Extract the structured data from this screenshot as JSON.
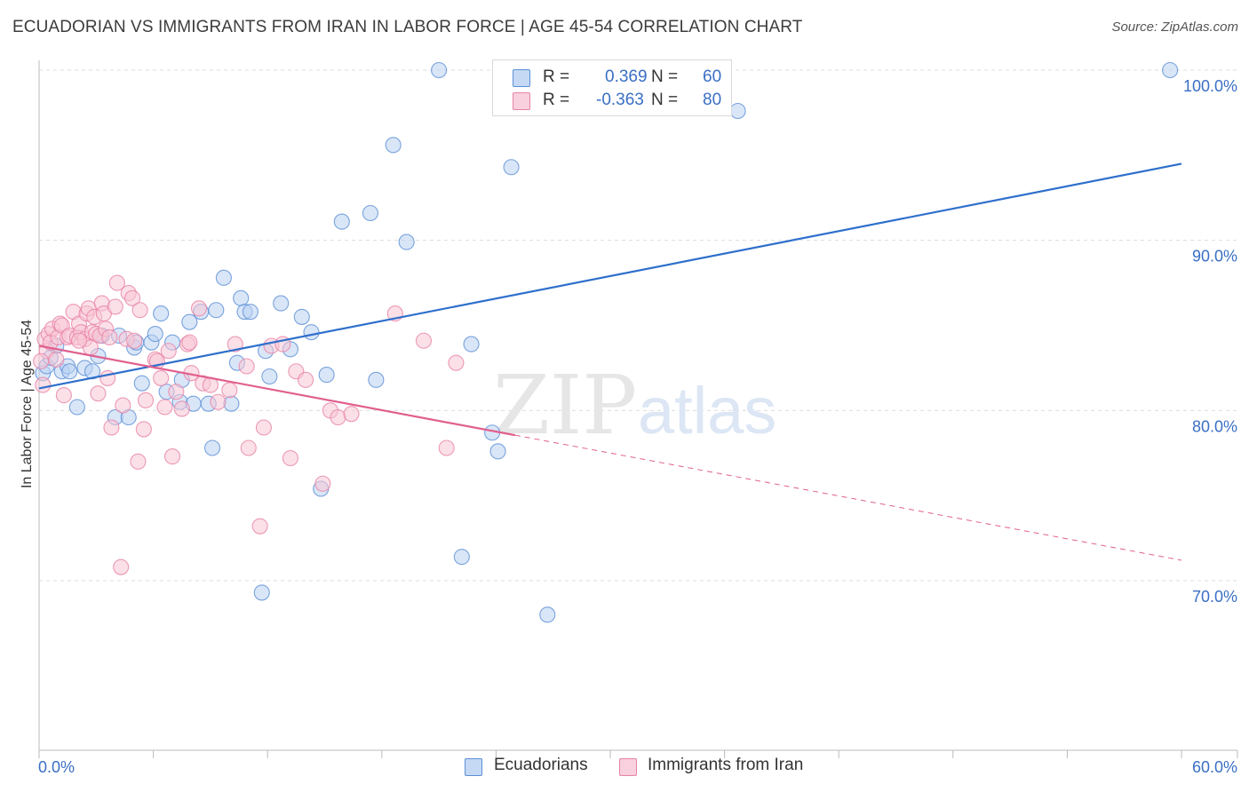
{
  "header": {
    "title": "ECUADORIAN VS IMMIGRANTS FROM IRAN IN LABOR FORCE | AGE 45-54 CORRELATION CHART",
    "source": "Source: ZipAtlas.com"
  },
  "watermark": {
    "part1": "ZIP",
    "part2": "atlas"
  },
  "legend": {
    "rows": [
      {
        "r_label": "R =",
        "r_value": "0.369",
        "n_label": "N =",
        "n_value": "60",
        "color": "#5b8fd6",
        "fill": "#b9d1f2"
      },
      {
        "r_label": "R =",
        "r_value": "-0.363",
        "n_label": "N =",
        "n_value": "80",
        "color": "#e882a6",
        "fill": "#f7c6d6"
      }
    ]
  },
  "bottom_legend": [
    {
      "label": "Ecuadorians",
      "color": "#5b8fd6",
      "fill": "#b9d1f2"
    },
    {
      "label": "Immigrants from Iran",
      "color": "#e882a6",
      "fill": "#f7c6d6"
    }
  ],
  "chart_data": {
    "type": "scatter",
    "ylabel": "In Labor Force | Age 45-54",
    "x_tick_labels": [
      "0.0%",
      "60.0%"
    ],
    "y_tick_labels": [
      "100.0%",
      "90.0%",
      "80.0%",
      "70.0%"
    ],
    "y_ticks": [
      100,
      90,
      80,
      70
    ],
    "xlim": [
      0,
      60
    ],
    "ylim": [
      60,
      100.8
    ],
    "grid": true,
    "colors": {
      "blue": "#2e6fcc",
      "pink": "#e0608e"
    },
    "series": [
      {
        "name": "Ecuadorians",
        "color": "#5b8fd6",
        "fill": "#b9d1f2",
        "trend": {
          "x0": 0.0,
          "y0": 81.3,
          "x1": 60.0,
          "y1": 94.5,
          "dash_from": null
        },
        "points": [
          [
            0.2,
            82.2
          ],
          [
            0.4,
            82.6
          ],
          [
            0.6,
            83.1
          ],
          [
            0.9,
            83.8
          ],
          [
            1.2,
            82.3
          ],
          [
            1.5,
            82.6
          ],
          [
            1.6,
            82.3
          ],
          [
            2.0,
            80.2
          ],
          [
            2.4,
            82.5
          ],
          [
            2.8,
            82.3
          ],
          [
            3.1,
            83.2
          ],
          [
            3.3,
            84.4
          ],
          [
            4.0,
            79.6
          ],
          [
            4.2,
            84.4
          ],
          [
            4.7,
            79.6
          ],
          [
            5.0,
            83.7
          ],
          [
            5.1,
            84.0
          ],
          [
            5.4,
            81.6
          ],
          [
            5.9,
            84.0
          ],
          [
            6.1,
            84.5
          ],
          [
            6.4,
            85.7
          ],
          [
            6.7,
            81.1
          ],
          [
            7.0,
            84.0
          ],
          [
            7.4,
            80.5
          ],
          [
            7.5,
            81.8
          ],
          [
            7.9,
            85.2
          ],
          [
            8.1,
            80.4
          ],
          [
            8.5,
            85.8
          ],
          [
            8.9,
            80.4
          ],
          [
            9.1,
            77.8
          ],
          [
            9.3,
            85.9
          ],
          [
            9.7,
            87.8
          ],
          [
            10.1,
            80.4
          ],
          [
            10.4,
            82.8
          ],
          [
            10.6,
            86.6
          ],
          [
            10.8,
            85.8
          ],
          [
            11.1,
            85.8
          ],
          [
            11.7,
            69.3
          ],
          [
            11.9,
            83.5
          ],
          [
            12.1,
            82.0
          ],
          [
            12.7,
            86.3
          ],
          [
            13.2,
            83.6
          ],
          [
            13.8,
            85.5
          ],
          [
            14.3,
            84.6
          ],
          [
            14.8,
            75.4
          ],
          [
            15.1,
            82.1
          ],
          [
            15.9,
            91.1
          ],
          [
            17.4,
            91.6
          ],
          [
            17.7,
            81.8
          ],
          [
            18.6,
            95.6
          ],
          [
            19.3,
            89.9
          ],
          [
            21.0,
            100.0
          ],
          [
            22.2,
            71.4
          ],
          [
            22.7,
            83.9
          ],
          [
            23.8,
            78.7
          ],
          [
            24.1,
            77.6
          ],
          [
            24.8,
            94.3
          ],
          [
            26.7,
            68.0
          ],
          [
            36.7,
            97.6
          ],
          [
            59.4,
            100.0
          ]
        ]
      },
      {
        "name": "Immigrants from Iran",
        "color": "#e882a6",
        "fill": "#f7c6d6",
        "trend": {
          "x0": 0.0,
          "y0": 83.8,
          "x1": 60.0,
          "y1": 71.2,
          "solid_to": 25.0
        },
        "points": [
          [
            0.2,
            81.5
          ],
          [
            0.3,
            84.2
          ],
          [
            0.4,
            83.5
          ],
          [
            0.5,
            84.5
          ],
          [
            0.6,
            84.0
          ],
          [
            0.7,
            84.8
          ],
          [
            0.9,
            83.0
          ],
          [
            1.0,
            84.3
          ],
          [
            1.1,
            85.1
          ],
          [
            1.2,
            85.0
          ],
          [
            1.3,
            80.9
          ],
          [
            1.5,
            84.3
          ],
          [
            1.6,
            84.4
          ],
          [
            1.8,
            85.8
          ],
          [
            2.0,
            84.3
          ],
          [
            2.1,
            85.1
          ],
          [
            2.2,
            84.6
          ],
          [
            2.4,
            84.2
          ],
          [
            2.5,
            85.7
          ],
          [
            2.6,
            86.0
          ],
          [
            2.7,
            83.7
          ],
          [
            2.8,
            84.6
          ],
          [
            2.9,
            85.5
          ],
          [
            3.0,
            84.5
          ],
          [
            3.1,
            81.0
          ],
          [
            3.2,
            84.4
          ],
          [
            3.3,
            86.3
          ],
          [
            3.4,
            85.7
          ],
          [
            3.5,
            84.8
          ],
          [
            3.6,
            81.9
          ],
          [
            3.7,
            84.3
          ],
          [
            3.8,
            79.0
          ],
          [
            4.0,
            86.1
          ],
          [
            4.1,
            87.5
          ],
          [
            4.3,
            70.8
          ],
          [
            4.4,
            80.3
          ],
          [
            4.6,
            84.2
          ],
          [
            4.7,
            86.9
          ],
          [
            4.9,
            86.6
          ],
          [
            5.0,
            84.1
          ],
          [
            5.2,
            77.0
          ],
          [
            5.3,
            85.9
          ],
          [
            5.5,
            78.9
          ],
          [
            5.6,
            80.6
          ],
          [
            6.1,
            83.0
          ],
          [
            6.2,
            82.9
          ],
          [
            6.4,
            81.9
          ],
          [
            6.6,
            80.2
          ],
          [
            6.8,
            83.5
          ],
          [
            7.0,
            77.3
          ],
          [
            7.2,
            81.1
          ],
          [
            7.5,
            80.1
          ],
          [
            7.8,
            83.9
          ],
          [
            8.0,
            82.2
          ],
          [
            8.4,
            86.0
          ],
          [
            8.6,
            81.6
          ],
          [
            9.0,
            81.5
          ],
          [
            9.4,
            80.5
          ],
          [
            10.0,
            81.2
          ],
          [
            10.3,
            83.9
          ],
          [
            10.9,
            82.6
          ],
          [
            11.0,
            77.8
          ],
          [
            11.6,
            73.2
          ],
          [
            11.8,
            79.0
          ],
          [
            12.2,
            83.8
          ],
          [
            12.8,
            83.9
          ],
          [
            13.2,
            77.2
          ],
          [
            13.5,
            82.3
          ],
          [
            14.0,
            81.8
          ],
          [
            14.9,
            75.7
          ],
          [
            15.3,
            80.0
          ],
          [
            15.7,
            79.6
          ],
          [
            16.4,
            79.8
          ],
          [
            18.7,
            85.7
          ],
          [
            20.2,
            84.1
          ],
          [
            21.4,
            77.8
          ],
          [
            21.9,
            82.8
          ]
        ]
      }
    ],
    "extra_points": {
      "Immigrants from Iran": [
        [
          0.1,
          82.9
        ],
        [
          2.1,
          84.1
        ],
        [
          7.9,
          84.0
        ]
      ]
    }
  }
}
